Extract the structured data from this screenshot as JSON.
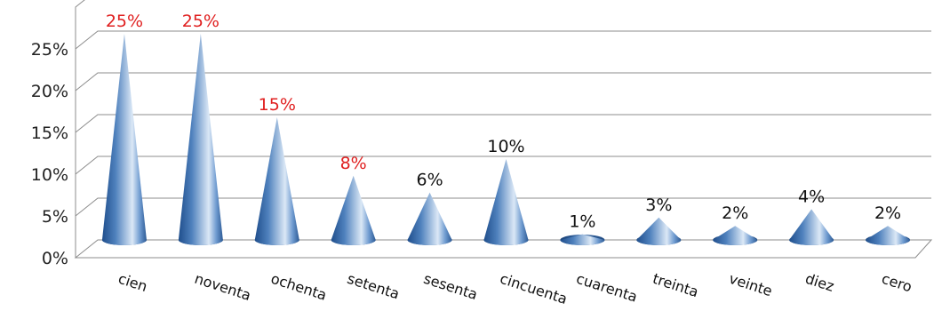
{
  "chart_data": {
    "type": "bar",
    "shape": "cone-3d",
    "categories": [
      "cien",
      "noventa",
      "ochenta",
      "setenta",
      "sesenta",
      "cincuenta",
      "cuarenta",
      "treinta",
      "veinte",
      "diez",
      "cero"
    ],
    "values": [
      25,
      25,
      15,
      8,
      6,
      10,
      1,
      3,
      2,
      4,
      2
    ],
    "data_labels": [
      "25%",
      "25%",
      "15%",
      "8%",
      "6%",
      "10%",
      "1%",
      "3%",
      "2%",
      "4%",
      "2%"
    ],
    "label_highlighted": [
      true,
      true,
      true,
      true,
      false,
      false,
      false,
      false,
      false,
      false,
      false
    ],
    "ylim": [
      0,
      30
    ],
    "yticks": [
      "0%",
      "5%",
      "10%",
      "15%",
      "20%",
      "25%"
    ],
    "grid": true,
    "legend": "none",
    "colors": {
      "cone_dark": "#1f4e8c",
      "cone_mid": "#4f81bd",
      "cone_light": "#dbe8f6",
      "label_highlight": "#e02020",
      "label_normal": "#111111",
      "grid": "#8c8c8c"
    }
  }
}
